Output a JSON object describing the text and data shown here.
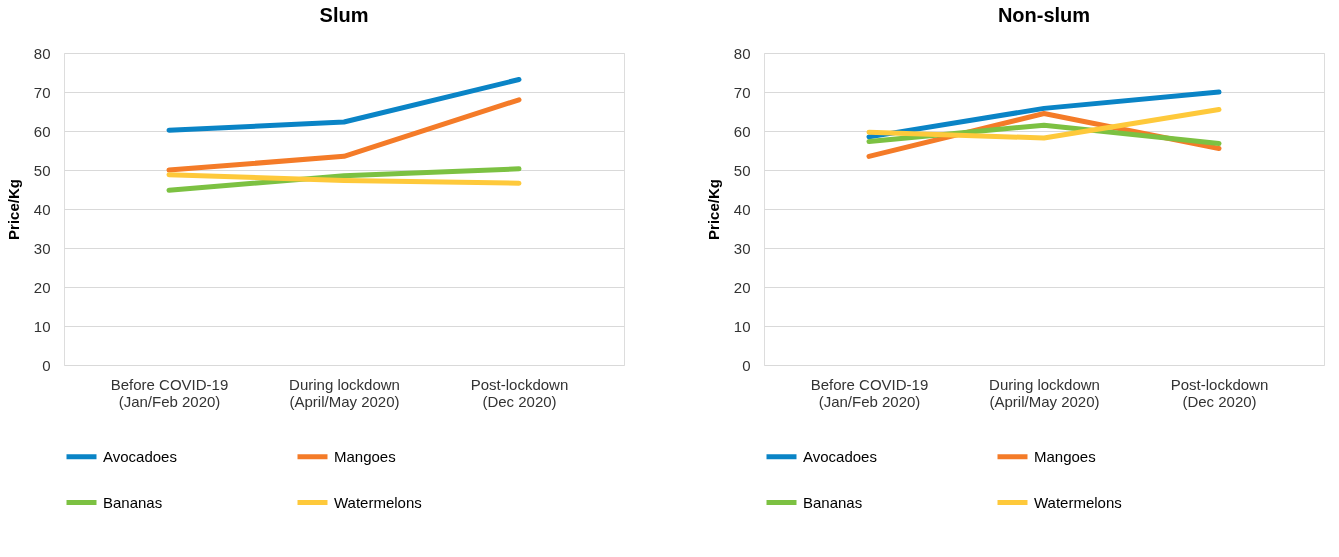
{
  "chart_data": [
    {
      "type": "line",
      "title": "Slum",
      "ylabel": "Price/Kg",
      "categories": [
        "Before COVID-19\n(Jan/Feb 2020)",
        "During lockdown\n(April/May 2020)",
        "Post-lockdown\n(Dec 2020)"
      ],
      "series": [
        {
          "name": "Avocadoes",
          "color": "#0a84c6",
          "values": [
            60.2,
            62.3,
            73.2
          ]
        },
        {
          "name": "Mangoes",
          "color": "#f47b28",
          "values": [
            50,
            53.5,
            68
          ]
        },
        {
          "name": "Bananas",
          "color": "#7cc142",
          "values": [
            44.8,
            48.5,
            50.3
          ]
        },
        {
          "name": "Watermelons",
          "color": "#fec93b",
          "values": [
            48.8,
            47.3,
            46.6
          ]
        }
      ],
      "ylim": [
        0,
        80
      ],
      "yticks": [
        0,
        10,
        20,
        30,
        40,
        50,
        60,
        70,
        80
      ],
      "grid": "y",
      "legend": "bottom",
      "marker": "none",
      "line_style": "solid"
    },
    {
      "type": "line",
      "title": "Non-slum",
      "ylabel": "Price/Kg",
      "categories": [
        "Before COVID-19\n(Jan/Feb 2020)",
        "During lockdown\n(April/May 2020)",
        "Post-lockdown\n(Dec 2020)"
      ],
      "series": [
        {
          "name": "Avocadoes",
          "color": "#0a84c6",
          "values": [
            58.5,
            65.8,
            70
          ]
        },
        {
          "name": "Mangoes",
          "color": "#f47b28",
          "values": [
            53.5,
            64.5,
            55.5
          ]
        },
        {
          "name": "Bananas",
          "color": "#7cc142",
          "values": [
            57.3,
            61.5,
            56.8
          ]
        },
        {
          "name": "Watermelons",
          "color": "#fec93b",
          "values": [
            59.7,
            58.2,
            65.5
          ]
        }
      ],
      "ylim": [
        0,
        80
      ],
      "yticks": [
        0,
        10,
        20,
        30,
        40,
        50,
        60,
        70,
        80
      ],
      "grid": "y",
      "legend": "bottom",
      "marker": "none",
      "line_style": "solid"
    }
  ]
}
